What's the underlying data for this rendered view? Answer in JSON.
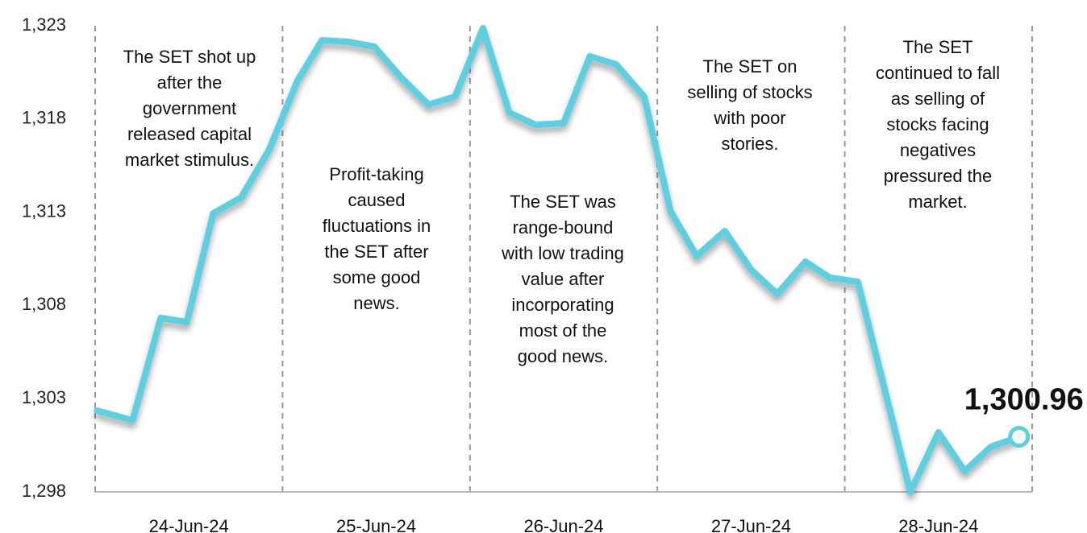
{
  "chart_data": {
    "type": "line",
    "x": [
      0.01,
      0.2,
      0.35,
      0.49,
      0.63,
      0.78,
      0.93,
      1.08,
      1.21,
      1.35,
      1.49,
      1.64,
      1.78,
      1.92,
      2.07,
      2.21,
      2.35,
      2.5,
      2.64,
      2.78,
      2.93,
      3.07,
      3.21,
      3.36,
      3.5,
      3.64,
      3.79,
      3.92,
      4.07,
      4.35,
      4.5,
      4.64,
      4.78,
      4.93
    ],
    "values": [
      1302.36,
      1301.84,
      1307.33,
      1307.11,
      1312.94,
      1313.8,
      1316.39,
      1320.06,
      1322.22,
      1322.14,
      1321.88,
      1320.15,
      1318.77,
      1319.2,
      1322.87,
      1318.34,
      1317.69,
      1317.78,
      1321.36,
      1320.93,
      1319.2,
      1313.07,
      1310.65,
      1311.99,
      1309.92,
      1308.62,
      1310.35,
      1309.49,
      1309.27,
      1298.0,
      1301.2,
      1299.12,
      1300.42,
      1300.96
    ],
    "value_labels": [
      null,
      null,
      null,
      null,
      null,
      null,
      null,
      null,
      null,
      null,
      null,
      null,
      null,
      null,
      null,
      null,
      null,
      null,
      null,
      null,
      null,
      null,
      null,
      null,
      null,
      null,
      null,
      null,
      null,
      null,
      null,
      null,
      null,
      "1,300.96"
    ],
    "color": "#5ccfe0",
    "xlim": [
      0,
      5
    ],
    "xticks": [
      {
        "value": 0.5,
        "label": "24-Jun-24"
      },
      {
        "value": 1.5,
        "label": "25-Jun-24"
      },
      {
        "value": 2.5,
        "label": "26-Jun-24"
      },
      {
        "value": 3.5,
        "label": "27-Jun-24"
      },
      {
        "value": 4.5,
        "label": "28-Jun-24"
      }
    ],
    "xgrid": [
      0,
      1,
      2,
      3,
      4,
      5
    ],
    "ylim": [
      1298,
      1323
    ],
    "yticks": [
      {
        "value": 1298,
        "label": "1,298"
      },
      {
        "value": 1303,
        "label": "1,303"
      },
      {
        "value": 1308,
        "label": "1,308"
      },
      {
        "value": 1313,
        "label": "1,313"
      },
      {
        "value": 1318,
        "label": "1,318"
      },
      {
        "value": 1323,
        "label": "1,323"
      }
    ],
    "annotations": [
      [
        "The SET shot up",
        "after the",
        "government",
        "released capital",
        "market stimulus."
      ],
      [
        "Profit-taking",
        "caused",
        "fluctuations in",
        "the SET after",
        "some good",
        "news."
      ],
      [
        "The SET was",
        "range-bound",
        "with low trading",
        "value after",
        "incorporating",
        "most of the",
        "good news."
      ],
      [
        "The SET on",
        "selling of stocks",
        "with poor",
        "stories."
      ],
      [
        "The SET",
        "continued to fall",
        "as selling of",
        "stocks facing",
        "negatives",
        "pressured the",
        "market."
      ]
    ]
  }
}
